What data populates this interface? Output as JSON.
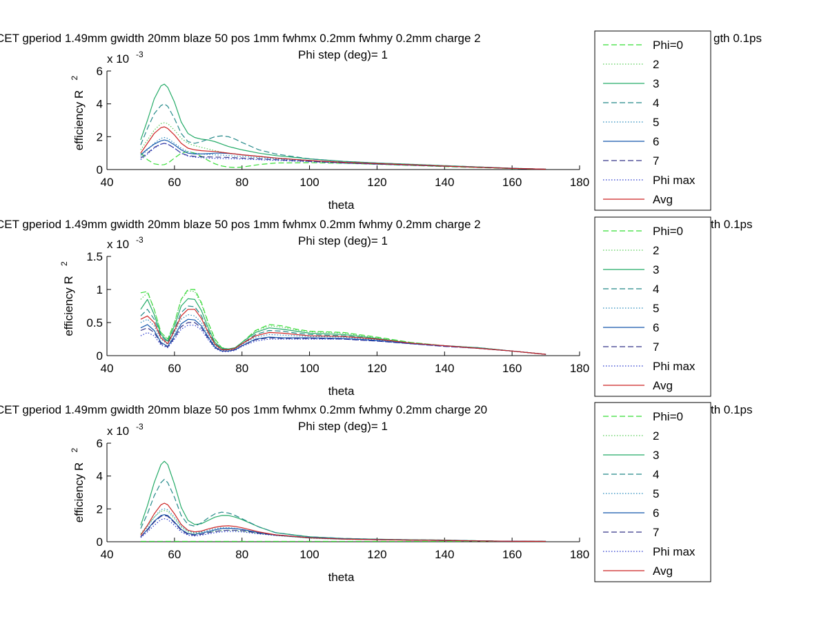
{
  "figure": {
    "background": "#ffffff",
    "series_styles": [
      {
        "color": "#33dd33",
        "dash": "dashed"
      },
      {
        "color": "#55cc55",
        "dash": "dotted"
      },
      {
        "color": "#22aa66",
        "dash": "solid"
      },
      {
        "color": "#228888",
        "dash": "dashed"
      },
      {
        "color": "#2288bb",
        "dash": "dotted"
      },
      {
        "color": "#1155aa",
        "dash": "solid"
      },
      {
        "color": "#333388",
        "dash": "dashed"
      },
      {
        "color": "#2233cc",
        "dash": "dotted"
      },
      {
        "color": "#cc2222",
        "dash": "solid"
      }
    ]
  },
  "chart_data": [
    {
      "type": "line",
      "title": "CET gperiod 1.49mm gwidth 20mm blaze 50 pos 1mm fwhmx 0.2mm fwhmy 0.2mm charge 2",
      "title_tail": "gth 0.1ps",
      "subtitle": "Phi step (deg)= 1",
      "xlabel": "theta",
      "ylabel": "efficiency R",
      "ylabel_sup": "2",
      "multiplier": "x 10",
      "multiplier_exp": "-3",
      "xlim": [
        40,
        180
      ],
      "ylim": [
        0,
        6
      ],
      "xticks": [
        "40",
        "60",
        "80",
        "100",
        "120",
        "140",
        "160",
        "180"
      ],
      "yticks": [
        "0",
        "2",
        "4",
        "6"
      ],
      "legend_placement": "outside-right",
      "legend": [
        "Phi=0",
        "2",
        "3",
        "4",
        "5",
        "6",
        "7",
        "Phi max",
        "Avg"
      ],
      "x": [
        50,
        52,
        54,
        56,
        57,
        58,
        60,
        62,
        64,
        66,
        68,
        70,
        72,
        74,
        76,
        78,
        80,
        85,
        90,
        100,
        110,
        120,
        130,
        140,
        150,
        160,
        170
      ],
      "series": [
        {
          "name": "Phi=0",
          "values": [
            1.0,
            0.6,
            0.35,
            0.28,
            0.3,
            0.38,
            0.7,
            1.0,
            1.1,
            1.0,
            0.8,
            0.55,
            0.35,
            0.22,
            0.15,
            0.12,
            0.15,
            0.3,
            0.4,
            0.42,
            0.38,
            0.32,
            0.25,
            0.18,
            0.12,
            0.06,
            0.02
          ]
        },
        {
          "name": "2",
          "values": [
            1.2,
            1.8,
            2.4,
            2.8,
            2.85,
            2.8,
            2.4,
            1.9,
            1.6,
            1.45,
            1.35,
            1.25,
            1.15,
            1.05,
            1.0,
            0.95,
            0.9,
            0.8,
            0.7,
            0.55,
            0.45,
            0.38,
            0.3,
            0.22,
            0.15,
            0.08,
            0.02
          ]
        },
        {
          "name": "3",
          "values": [
            1.8,
            3.0,
            4.3,
            5.1,
            5.2,
            5.0,
            4.1,
            2.9,
            2.2,
            1.95,
            1.85,
            1.8,
            1.7,
            1.55,
            1.4,
            1.3,
            1.2,
            1.0,
            0.85,
            0.65,
            0.5,
            0.4,
            0.32,
            0.24,
            0.16,
            0.08,
            0.02
          ]
        },
        {
          "name": "4",
          "values": [
            1.5,
            2.5,
            3.4,
            3.9,
            4.0,
            3.85,
            3.1,
            2.2,
            1.7,
            1.6,
            1.7,
            1.85,
            2.0,
            2.05,
            2.0,
            1.85,
            1.65,
            1.2,
            0.95,
            0.65,
            0.5,
            0.4,
            0.32,
            0.24,
            0.16,
            0.08,
            0.02
          ]
        },
        {
          "name": "5",
          "values": [
            0.8,
            1.2,
            1.6,
            1.9,
            1.95,
            1.9,
            1.6,
            1.3,
            1.1,
            1.0,
            0.95,
            0.92,
            0.9,
            0.88,
            0.85,
            0.82,
            0.8,
            0.72,
            0.65,
            0.52,
            0.42,
            0.35,
            0.28,
            0.2,
            0.14,
            0.07,
            0.02
          ]
        },
        {
          "name": "6",
          "values": [
            0.9,
            1.25,
            1.55,
            1.75,
            1.8,
            1.75,
            1.5,
            1.2,
            1.0,
            0.95,
            0.95,
            0.97,
            1.0,
            1.0,
            0.98,
            0.95,
            0.9,
            0.8,
            0.7,
            0.55,
            0.43,
            0.35,
            0.28,
            0.2,
            0.14,
            0.07,
            0.02
          ]
        },
        {
          "name": "7",
          "values": [
            0.7,
            1.0,
            1.35,
            1.55,
            1.6,
            1.55,
            1.3,
            1.0,
            0.85,
            0.8,
            0.78,
            0.77,
            0.76,
            0.75,
            0.74,
            0.72,
            0.7,
            0.65,
            0.6,
            0.5,
            0.4,
            0.33,
            0.27,
            0.2,
            0.14,
            0.07,
            0.02
          ]
        },
        {
          "name": "Phi max",
          "values": [
            0.6,
            0.95,
            1.3,
            1.55,
            1.6,
            1.55,
            1.3,
            1.0,
            0.82,
            0.75,
            0.72,
            0.7,
            0.68,
            0.67,
            0.66,
            0.65,
            0.64,
            0.6,
            0.56,
            0.48,
            0.4,
            0.33,
            0.26,
            0.2,
            0.14,
            0.07,
            0.02
          ]
        },
        {
          "name": "Avg",
          "values": [
            1.0,
            1.6,
            2.2,
            2.55,
            2.6,
            2.5,
            2.1,
            1.6,
            1.3,
            1.2,
            1.15,
            1.12,
            1.1,
            1.05,
            1.0,
            0.95,
            0.9,
            0.8,
            0.7,
            0.55,
            0.44,
            0.36,
            0.29,
            0.21,
            0.14,
            0.07,
            0.02
          ]
        }
      ]
    },
    {
      "type": "line",
      "title": "CET gperiod 1.49mm gwidth 20mm blaze 50 pos 1mm fwhmx 0.2mm fwhmy 0.2mm charge 2",
      "title_tail": "th 0.1ps",
      "subtitle": "Phi step (deg)= 1",
      "xlabel": "theta",
      "ylabel": "efficiency R",
      "ylabel_sup": "2",
      "multiplier": "x 10",
      "multiplier_exp": "-3",
      "xlim": [
        40,
        180
      ],
      "ylim": [
        0,
        1.5
      ],
      "xticks": [
        "40",
        "60",
        "80",
        "100",
        "120",
        "140",
        "160",
        "180"
      ],
      "yticks": [
        "0",
        "0.5",
        "1",
        "1.5"
      ],
      "legend_placement": "outside-right",
      "legend": [
        "Phi=0",
        "2",
        "3",
        "4",
        "5",
        "6",
        "7",
        "Phi max",
        "Avg"
      ],
      "x": [
        50,
        52,
        54,
        56,
        58,
        60,
        62,
        64,
        66,
        68,
        70,
        72,
        74,
        76,
        78,
        80,
        84,
        88,
        92,
        96,
        100,
        110,
        120,
        130,
        140,
        150,
        160,
        170
      ],
      "series": [
        {
          "name": "Phi=0",
          "values": [
            0.95,
            0.97,
            0.7,
            0.35,
            0.25,
            0.5,
            0.85,
            1.0,
            1.0,
            0.8,
            0.5,
            0.25,
            0.12,
            0.1,
            0.12,
            0.2,
            0.38,
            0.47,
            0.45,
            0.4,
            0.37,
            0.35,
            0.28,
            0.2,
            0.15,
            0.12,
            0.07,
            0.02
          ]
        },
        {
          "name": "2",
          "values": [
            0.85,
            0.95,
            0.7,
            0.35,
            0.25,
            0.5,
            0.85,
            0.98,
            0.97,
            0.78,
            0.48,
            0.24,
            0.12,
            0.1,
            0.12,
            0.2,
            0.37,
            0.45,
            0.43,
            0.39,
            0.36,
            0.34,
            0.27,
            0.2,
            0.15,
            0.12,
            0.07,
            0.02
          ]
        },
        {
          "name": "3",
          "values": [
            0.7,
            0.85,
            0.62,
            0.32,
            0.22,
            0.45,
            0.75,
            0.86,
            0.85,
            0.68,
            0.42,
            0.2,
            0.11,
            0.1,
            0.12,
            0.2,
            0.35,
            0.42,
            0.4,
            0.37,
            0.34,
            0.32,
            0.26,
            0.19,
            0.15,
            0.12,
            0.07,
            0.02
          ]
        },
        {
          "name": "4",
          "values": [
            0.6,
            0.7,
            0.55,
            0.3,
            0.2,
            0.4,
            0.65,
            0.75,
            0.74,
            0.6,
            0.38,
            0.18,
            0.1,
            0.09,
            0.11,
            0.18,
            0.32,
            0.38,
            0.37,
            0.34,
            0.32,
            0.3,
            0.25,
            0.19,
            0.15,
            0.12,
            0.07,
            0.02
          ]
        },
        {
          "name": "5",
          "values": [
            0.5,
            0.55,
            0.45,
            0.25,
            0.17,
            0.35,
            0.55,
            0.62,
            0.6,
            0.5,
            0.32,
            0.15,
            0.08,
            0.08,
            0.1,
            0.17,
            0.28,
            0.32,
            0.31,
            0.3,
            0.29,
            0.28,
            0.24,
            0.18,
            0.15,
            0.11,
            0.07,
            0.02
          ]
        },
        {
          "name": "6",
          "values": [
            0.42,
            0.47,
            0.38,
            0.2,
            0.14,
            0.3,
            0.48,
            0.55,
            0.54,
            0.45,
            0.28,
            0.13,
            0.07,
            0.07,
            0.09,
            0.15,
            0.25,
            0.28,
            0.27,
            0.27,
            0.27,
            0.26,
            0.23,
            0.18,
            0.15,
            0.11,
            0.07,
            0.02
          ]
        },
        {
          "name": "7",
          "values": [
            0.38,
            0.42,
            0.35,
            0.18,
            0.13,
            0.27,
            0.44,
            0.5,
            0.5,
            0.42,
            0.26,
            0.12,
            0.07,
            0.07,
            0.09,
            0.15,
            0.24,
            0.27,
            0.26,
            0.26,
            0.26,
            0.25,
            0.22,
            0.18,
            0.14,
            0.11,
            0.07,
            0.02
          ]
        },
        {
          "name": "Phi max",
          "values": [
            0.3,
            0.35,
            0.3,
            0.16,
            0.12,
            0.25,
            0.4,
            0.46,
            0.46,
            0.39,
            0.24,
            0.11,
            0.06,
            0.06,
            0.08,
            0.14,
            0.22,
            0.25,
            0.25,
            0.25,
            0.25,
            0.25,
            0.22,
            0.18,
            0.14,
            0.11,
            0.07,
            0.02
          ]
        },
        {
          "name": "Avg",
          "values": [
            0.55,
            0.6,
            0.5,
            0.27,
            0.18,
            0.38,
            0.6,
            0.7,
            0.7,
            0.56,
            0.35,
            0.17,
            0.09,
            0.09,
            0.11,
            0.18,
            0.3,
            0.35,
            0.34,
            0.32,
            0.3,
            0.29,
            0.25,
            0.19,
            0.15,
            0.11,
            0.07,
            0.02
          ]
        }
      ]
    },
    {
      "type": "line",
      "title": "CET gperiod 1.49mm gwidth 20mm blaze 50 pos 1mm fwhmx 0.2mm fwhmy 0.2mm charge 20",
      "title_tail": "th 0.1ps",
      "subtitle": "Phi step (deg)= 1",
      "xlabel": "theta",
      "ylabel": "efficiency R",
      "ylabel_sup": "2",
      "multiplier": "x 10",
      "multiplier_exp": "-3",
      "xlim": [
        40,
        180
      ],
      "ylim": [
        0,
        6
      ],
      "xticks": [
        "40",
        "60",
        "80",
        "100",
        "120",
        "140",
        "160",
        "180"
      ],
      "yticks": [
        "0",
        "2",
        "4",
        "6"
      ],
      "legend_placement": "outside-right",
      "legend": [
        "Phi=0",
        "2",
        "3",
        "4",
        "5",
        "6",
        "7",
        "Phi max",
        "Avg"
      ],
      "x": [
        50,
        52,
        54,
        56,
        57,
        58,
        60,
        62,
        64,
        66,
        68,
        70,
        72,
        74,
        76,
        78,
        80,
        85,
        90,
        100,
        110,
        120,
        130,
        140,
        150,
        160,
        170
      ],
      "series": [
        {
          "name": "Phi=0",
          "values": [
            0.02,
            0.02,
            0.02,
            0.02,
            0.02,
            0.02,
            0.02,
            0.02,
            0.02,
            0.02,
            0.02,
            0.02,
            0.02,
            0.02,
            0.02,
            0.02,
            0.02,
            0.02,
            0.02,
            0.02,
            0.02,
            0.02,
            0.02,
            0.02,
            0.02,
            0.02,
            0.02
          ]
        },
        {
          "name": "2",
          "values": [
            0.5,
            1.0,
            1.5,
            1.85,
            1.9,
            1.85,
            1.4,
            0.9,
            0.6,
            0.5,
            0.55,
            0.6,
            0.65,
            0.68,
            0.7,
            0.68,
            0.65,
            0.5,
            0.38,
            0.22,
            0.15,
            0.12,
            0.1,
            0.08,
            0.05,
            0.03,
            0.02
          ]
        },
        {
          "name": "3",
          "values": [
            1.0,
            2.2,
            3.6,
            4.7,
            4.9,
            4.7,
            3.5,
            2.1,
            1.3,
            1.05,
            1.1,
            1.3,
            1.5,
            1.6,
            1.6,
            1.5,
            1.35,
            0.9,
            0.55,
            0.3,
            0.2,
            0.15,
            0.12,
            0.1,
            0.06,
            0.03,
            0.02
          ]
        },
        {
          "name": "4",
          "values": [
            0.8,
            1.7,
            2.8,
            3.6,
            3.8,
            3.6,
            2.7,
            1.6,
            1.05,
            0.95,
            1.15,
            1.45,
            1.7,
            1.8,
            1.75,
            1.6,
            1.4,
            0.9,
            0.55,
            0.3,
            0.2,
            0.15,
            0.12,
            0.1,
            0.06,
            0.03,
            0.02
          ]
        },
        {
          "name": "5",
          "values": [
            0.4,
            0.9,
            1.5,
            1.95,
            2.0,
            1.95,
            1.5,
            0.95,
            0.65,
            0.55,
            0.6,
            0.7,
            0.8,
            0.85,
            0.85,
            0.82,
            0.75,
            0.55,
            0.4,
            0.22,
            0.15,
            0.12,
            0.1,
            0.08,
            0.05,
            0.03,
            0.02
          ]
        },
        {
          "name": "6",
          "values": [
            0.3,
            0.75,
            1.25,
            1.6,
            1.65,
            1.6,
            1.2,
            0.75,
            0.5,
            0.45,
            0.52,
            0.62,
            0.72,
            0.8,
            0.82,
            0.8,
            0.75,
            0.55,
            0.42,
            0.25,
            0.17,
            0.13,
            0.1,
            0.08,
            0.05,
            0.03,
            0.02
          ]
        },
        {
          "name": "7",
          "values": [
            0.3,
            0.7,
            1.2,
            1.55,
            1.6,
            1.55,
            1.15,
            0.7,
            0.45,
            0.4,
            0.45,
            0.55,
            0.62,
            0.68,
            0.7,
            0.7,
            0.68,
            0.52,
            0.4,
            0.25,
            0.17,
            0.13,
            0.1,
            0.08,
            0.05,
            0.03,
            0.02
          ]
        },
        {
          "name": "Phi max",
          "values": [
            0.25,
            0.6,
            1.0,
            1.35,
            1.4,
            1.35,
            1.0,
            0.6,
            0.4,
            0.35,
            0.4,
            0.48,
            0.55,
            0.6,
            0.62,
            0.62,
            0.6,
            0.48,
            0.38,
            0.24,
            0.16,
            0.13,
            0.1,
            0.08,
            0.05,
            0.03,
            0.02
          ]
        },
        {
          "name": "Avg",
          "values": [
            0.4,
            1.0,
            1.7,
            2.25,
            2.35,
            2.25,
            1.7,
            1.05,
            0.7,
            0.6,
            0.65,
            0.78,
            0.88,
            0.95,
            0.97,
            0.93,
            0.85,
            0.6,
            0.42,
            0.24,
            0.16,
            0.12,
            0.1,
            0.08,
            0.05,
            0.03,
            0.02
          ]
        }
      ]
    }
  ]
}
